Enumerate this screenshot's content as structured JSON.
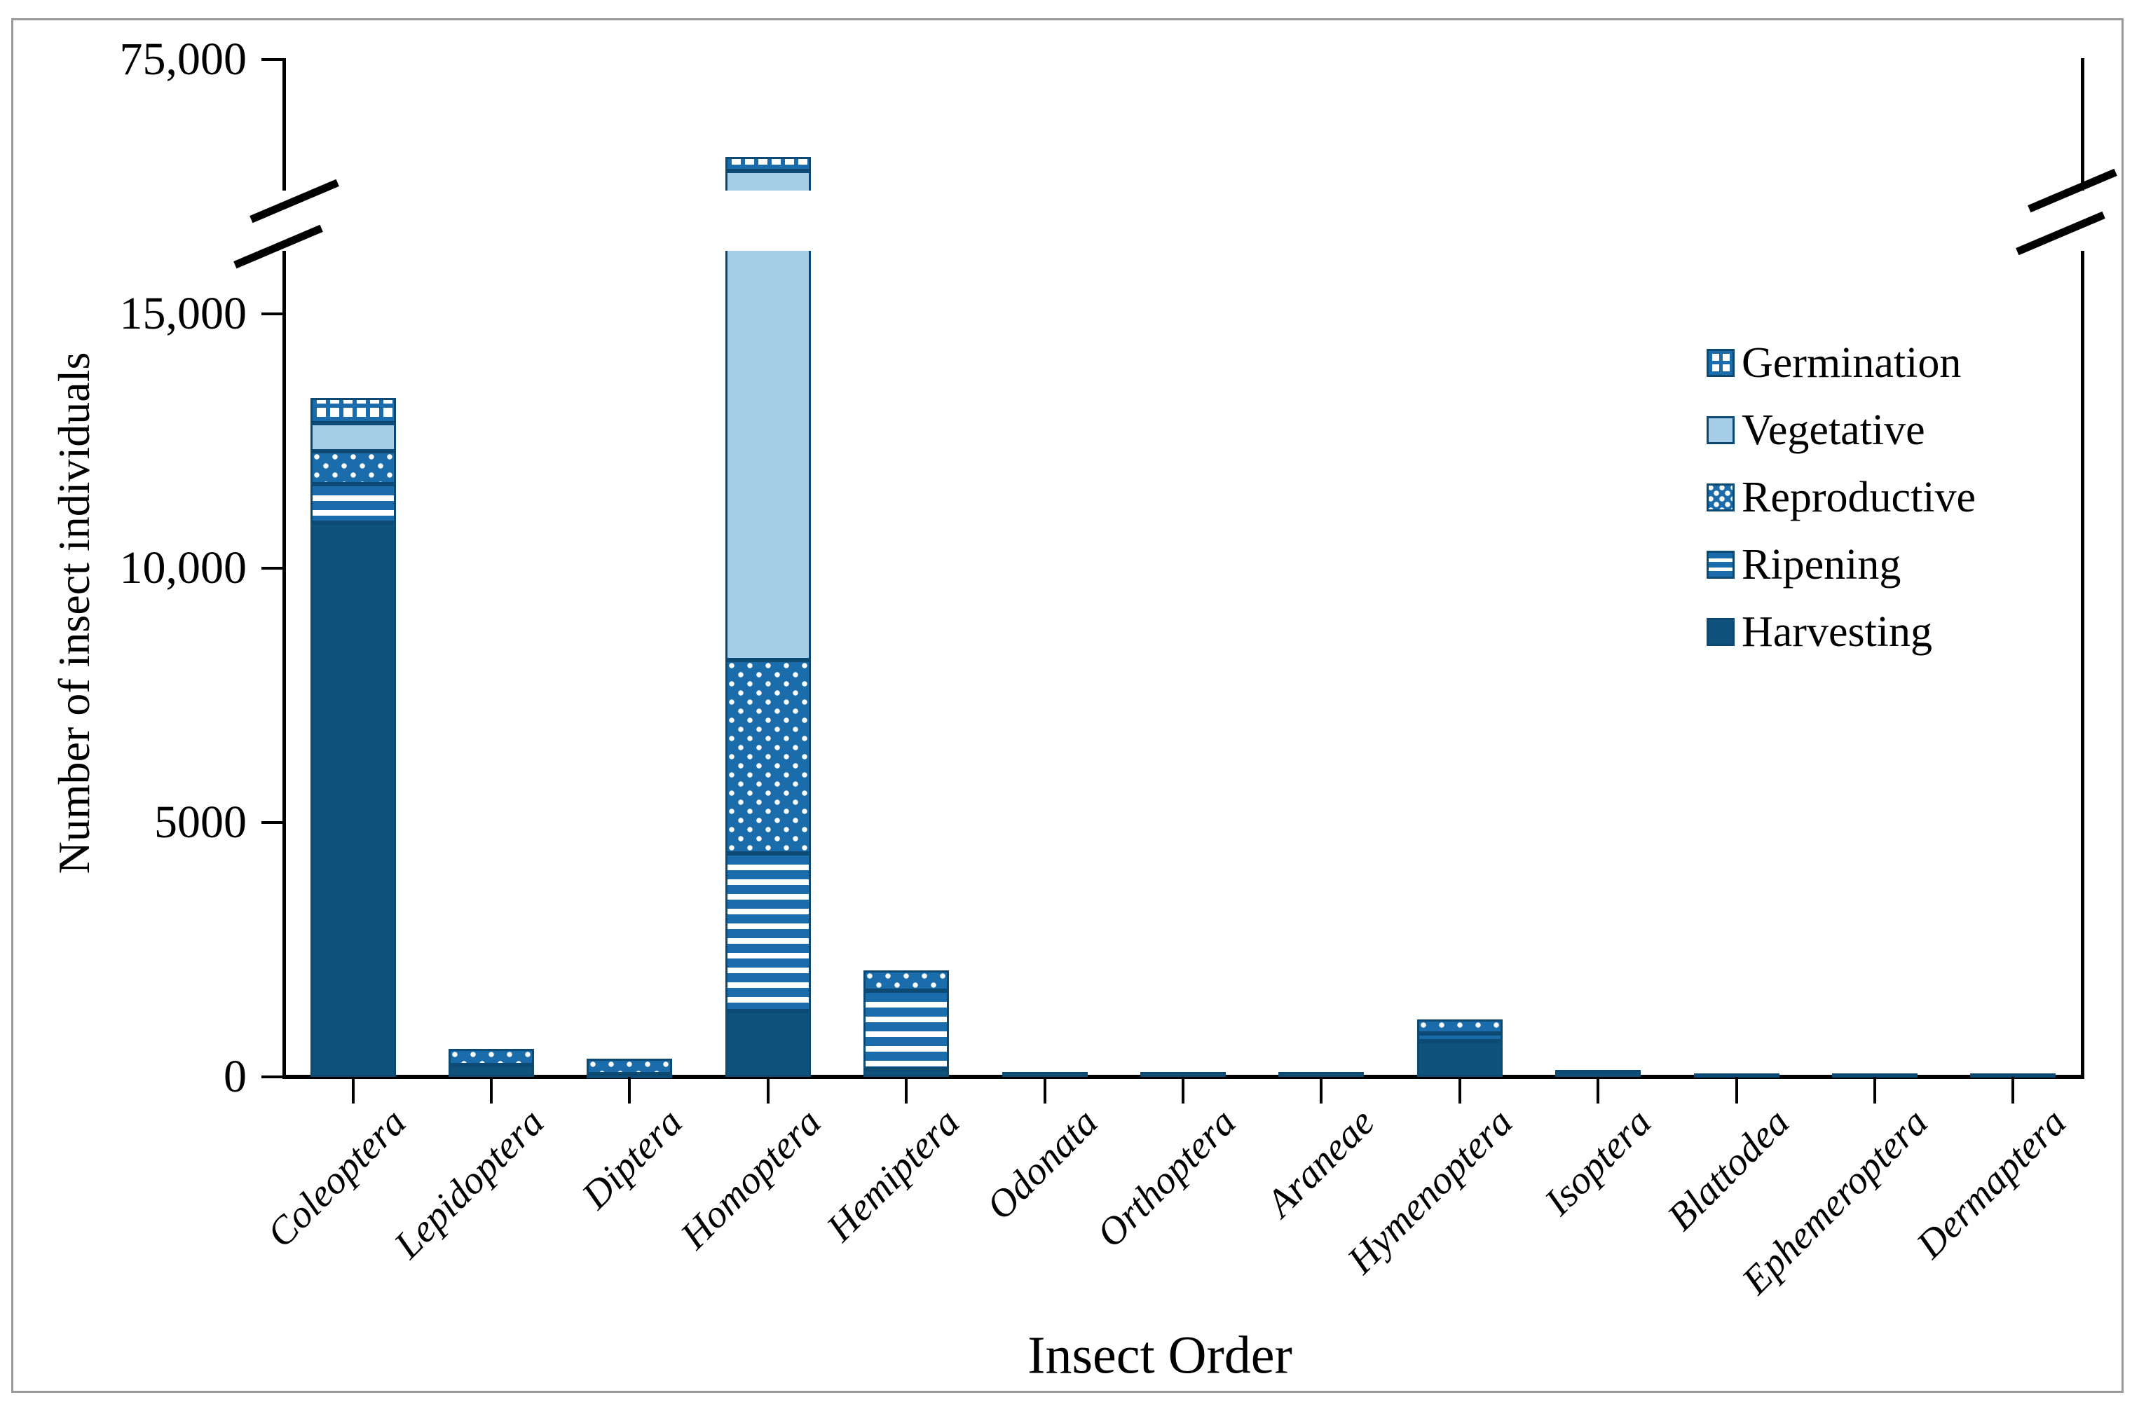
{
  "figure": {
    "frame_color": "#9a9a9a",
    "background": "#ffffff"
  },
  "chart_data": {
    "type": "bar",
    "stacked": true,
    "title": "",
    "xlabel": "Insect Order",
    "ylabel": "Number of insect individuals",
    "categories": [
      "Coleoptera",
      "Lepidoptera",
      "Diptera",
      "Homoptera",
      "Hemiptera",
      "Odonata",
      "Orthoptera",
      "Araneae",
      "Hymenoptera",
      "Isoptera",
      "Blattodea",
      "Ephemeroptera",
      "Dermaptera"
    ],
    "series": [
      {
        "name": "Harvesting",
        "key": "harvesting",
        "values": [
          10900,
          230,
          60,
          1300,
          150,
          100,
          90,
          90,
          700,
          100,
          70,
          70,
          70
        ]
      },
      {
        "name": "Ripening",
        "key": "ripening",
        "values": [
          750,
          0,
          0,
          3100,
          1550,
          0,
          0,
          0,
          150,
          40,
          0,
          0,
          0
        ]
      },
      {
        "name": "Reproductive",
        "key": "reproductive",
        "values": [
          650,
          320,
          300,
          3800,
          400,
          0,
          0,
          0,
          280,
          0,
          0,
          0,
          0
        ]
      },
      {
        "name": "Vegetative",
        "key": "vegetative",
        "values": [
          550,
          0,
          0,
          40500,
          0,
          0,
          0,
          0,
          0,
          0,
          0,
          0,
          0
        ]
      },
      {
        "name": "Germination",
        "key": "germination",
        "values": [
          500,
          0,
          0,
          3300,
          0,
          0,
          0,
          0,
          0,
          0,
          0,
          0,
          0
        ]
      }
    ],
    "legend": [
      {
        "label": "Germination",
        "key": "germination"
      },
      {
        "label": "Vegetative",
        "key": "vegetative"
      },
      {
        "label": "Reproductive",
        "key": "reproductive"
      },
      {
        "label": "Ripening",
        "key": "ripening"
      },
      {
        "label": "Harvesting",
        "key": "harvesting"
      }
    ],
    "legend_position": "upper-right",
    "y_ticks": [
      {
        "label": "0",
        "value": 0
      },
      {
        "label": "5000",
        "value": 5000
      },
      {
        "label": "10,000",
        "value": 10000
      },
      {
        "label": "15,000",
        "value": 15000
      },
      {
        "label": "75,000",
        "value": 75000
      }
    ],
    "ylim": [
      0,
      75000
    ],
    "axis_break": {
      "present": true,
      "lower_section_max": 15000,
      "upper_section_min": 15000,
      "upper_section_max": 75000
    },
    "grid": false,
    "colors": {
      "harvesting": "#0f527b",
      "pattern_blue": "#1a6cab",
      "vegetative": "#a7cee8",
      "segment_border": "#0d4a73",
      "axis": "#000000",
      "frame": "#9a9a9a"
    }
  }
}
